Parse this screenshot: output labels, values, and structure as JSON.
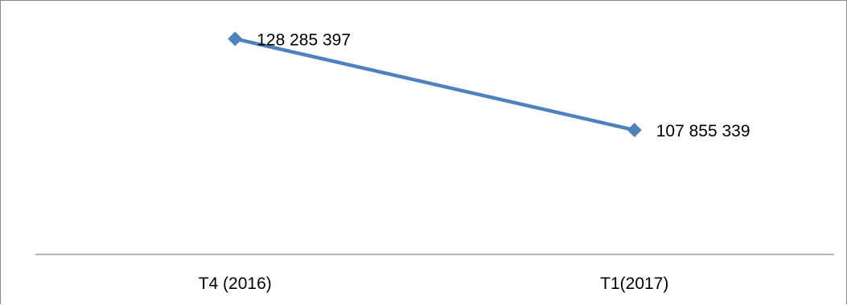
{
  "chart_data": {
    "type": "line",
    "categories": [
      "T4 (2016)",
      "T1(2017)"
    ],
    "series": [
      {
        "values": [
          128285397,
          107855339
        ],
        "data_labels": [
          "128 285 397",
          "107 855 339"
        ],
        "color": "#4f81bd",
        "marker": "diamond"
      }
    ],
    "ylim": [
      80000000,
      135000000
    ],
    "grid": false,
    "legend": "none",
    "title": "",
    "xlabel": "",
    "ylabel": ""
  }
}
